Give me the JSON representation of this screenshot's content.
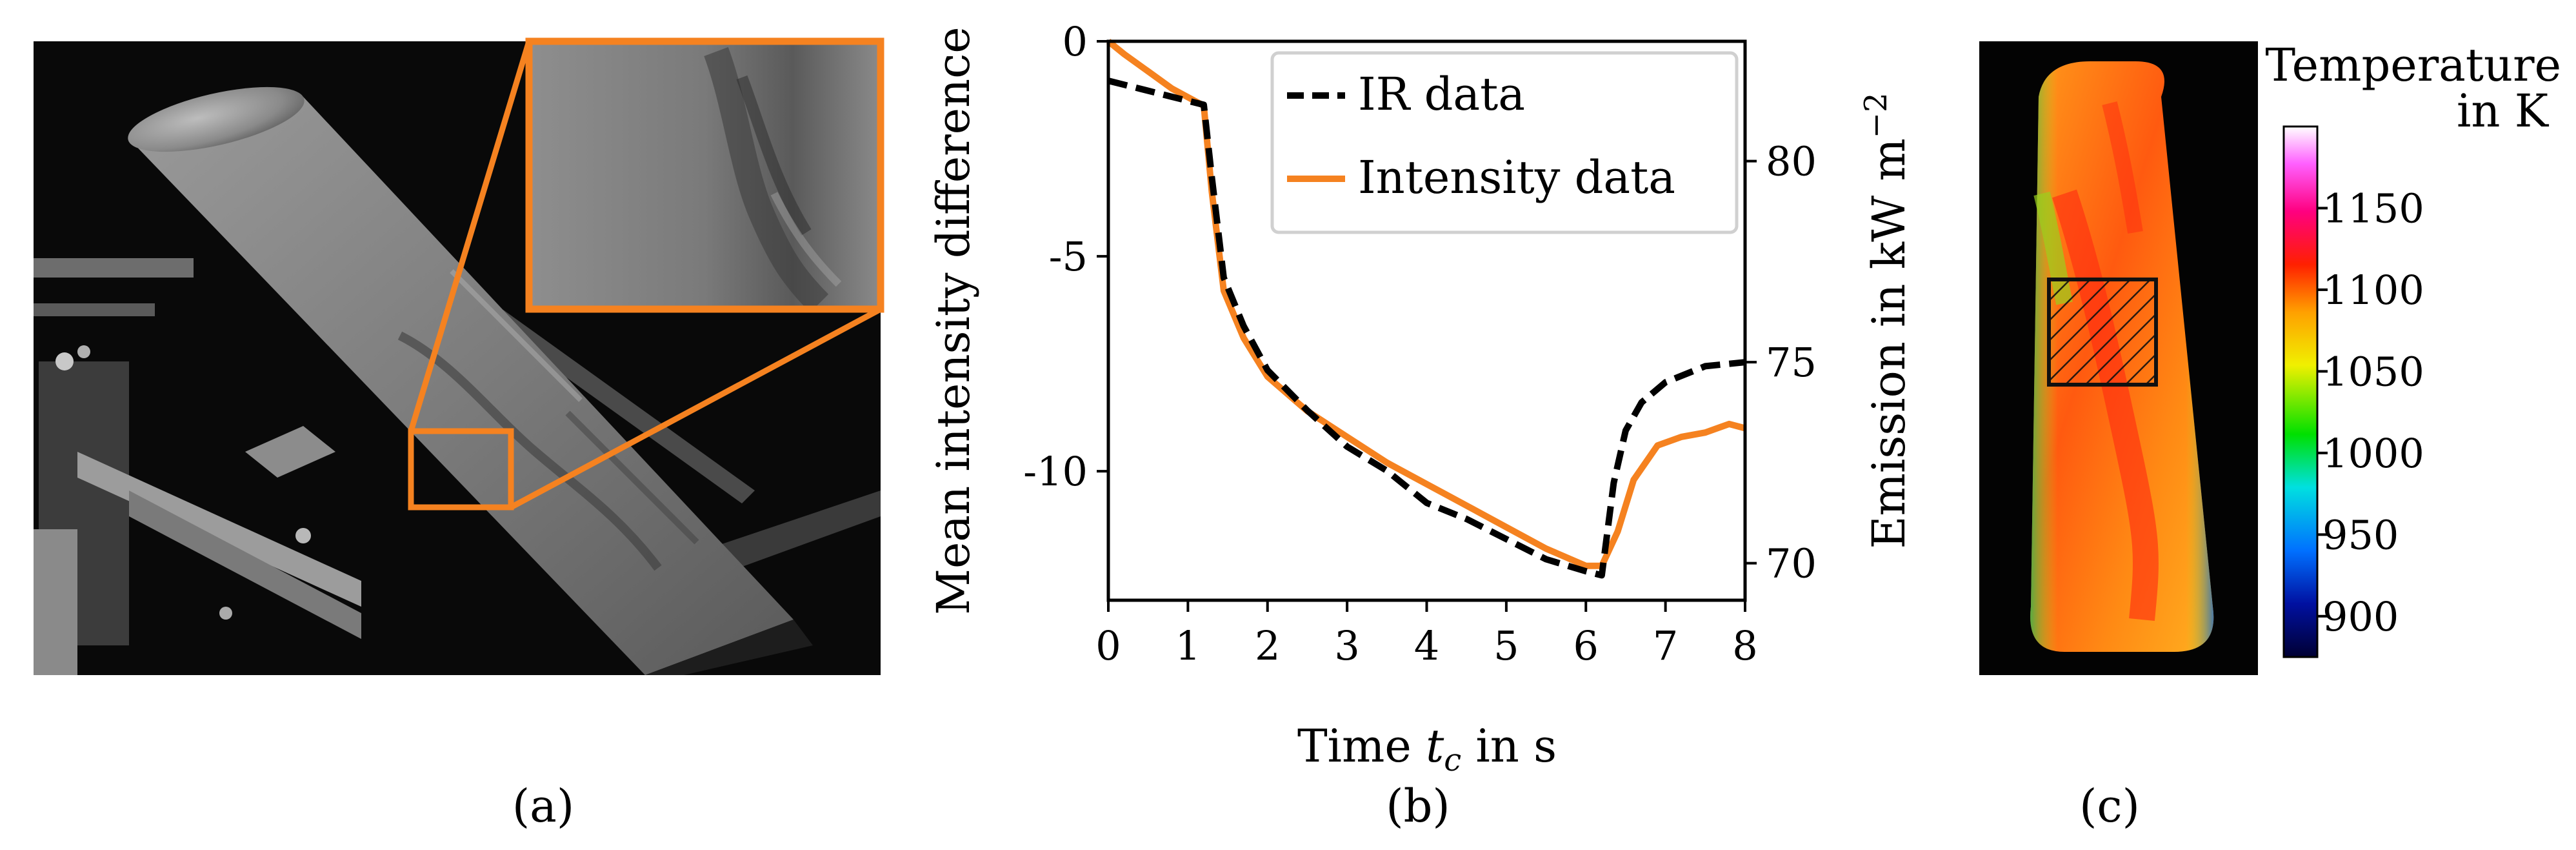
{
  "panel_a": {
    "caption": "(a)"
  },
  "panel_b": {
    "caption": "(b)"
  },
  "panel_c": {
    "caption": "(c)",
    "colorbar_title_line1": "Temperature",
    "colorbar_title_line2": "in K",
    "colorbar_ticks": [
      "1150",
      "1100",
      "1050",
      "1000",
      "950",
      "900"
    ],
    "colorbar_tick_values": [
      1150,
      1100,
      1050,
      1000,
      950,
      900
    ],
    "colorbar_range": [
      875,
      1200
    ]
  },
  "chart_data": {
    "type": "line",
    "title": "",
    "xlabel": "Time t_c in s",
    "xlabel_parts": {
      "pre": "Time ",
      "var": "t",
      "sub": "c",
      "post": " in s"
    },
    "ylabel": "Mean intensity difference",
    "y2label": "Emission in kW m−2",
    "y2label_parts": {
      "main": "Emission in kW m",
      "sup": "−2"
    },
    "xlim": [
      0,
      8
    ],
    "ylim": [
      -13,
      0
    ],
    "y2lim": [
      69.08,
      82.98
    ],
    "xticks": [
      0,
      1,
      2,
      3,
      4,
      5,
      6,
      7,
      8
    ],
    "xtick_labels": [
      "0",
      "1",
      "2",
      "3",
      "4",
      "5",
      "6",
      "7",
      "8"
    ],
    "yticks": [
      0,
      -5,
      -10
    ],
    "ytick_labels": [
      "0",
      "-5",
      "-10"
    ],
    "y2ticks": [
      80,
      75,
      70
    ],
    "y2tick_labels": [
      "80",
      "75",
      "70"
    ],
    "legend_position": "top-right",
    "series": [
      {
        "name": "IR data",
        "axis": "right",
        "style": "dashed",
        "color": "#000000",
        "x": [
          0,
          0.4,
          0.8,
          1.2,
          1.3,
          1.45,
          1.7,
          2.0,
          2.5,
          3.0,
          3.5,
          4.0,
          4.5,
          5.0,
          5.5,
          6.0,
          6.2,
          6.35,
          6.5,
          6.7,
          7.0,
          7.5,
          8.0
        ],
        "values": [
          82.0,
          81.8,
          81.6,
          81.4,
          79.6,
          77.1,
          75.9,
          74.8,
          73.8,
          72.9,
          72.3,
          71.5,
          71.1,
          70.6,
          70.1,
          69.8,
          69.7,
          72.0,
          73.3,
          74.0,
          74.5,
          74.9,
          75.0
        ]
      },
      {
        "name": "Intensity data",
        "axis": "left",
        "style": "solid",
        "color": "#f58220",
        "x": [
          0,
          0.2,
          0.5,
          0.8,
          1.0,
          1.2,
          1.3,
          1.45,
          1.7,
          2.0,
          2.5,
          3.0,
          3.5,
          4.0,
          4.5,
          5.0,
          5.5,
          6.0,
          6.2,
          6.4,
          6.6,
          6.9,
          7.2,
          7.5,
          7.8,
          8.0
        ],
        "values": [
          0.0,
          -0.3,
          -0.7,
          -1.1,
          -1.3,
          -1.5,
          -3.5,
          -5.8,
          -6.9,
          -7.8,
          -8.6,
          -9.2,
          -9.8,
          -10.3,
          -10.8,
          -11.3,
          -11.8,
          -12.2,
          -12.2,
          -11.4,
          -10.2,
          -9.4,
          -9.2,
          -9.1,
          -8.9,
          -9.0
        ]
      }
    ]
  }
}
